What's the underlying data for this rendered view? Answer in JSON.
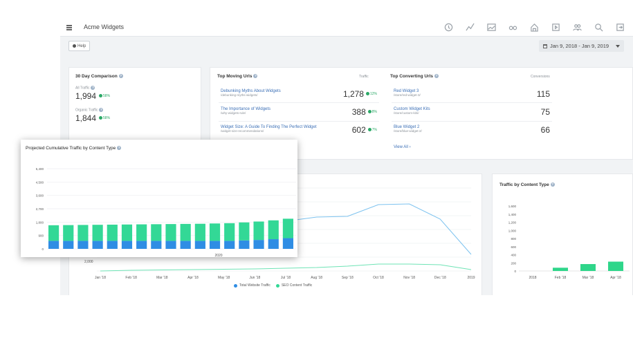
{
  "header": {
    "app_title": "Acme Widgets",
    "nav_icons": [
      "clock-icon",
      "line-chart-icon",
      "area-chart-icon",
      "glasses-icon",
      "home-icon",
      "play-icon",
      "users-icon",
      "search-icon",
      "exit-icon"
    ]
  },
  "toolbar": {
    "help_label": "Help",
    "date_range": "Jan 9, 2018 - Jan 9, 2019"
  },
  "comparison": {
    "title": "30 Day Comparison",
    "all_traffic_label": "All Traffic",
    "all_traffic_value": "1,994",
    "all_traffic_change": "58%",
    "organic_label": "Organic Traffic",
    "organic_value": "1,844",
    "organic_change": "58%"
  },
  "top_moving": {
    "title": "Top Moving Urls",
    "column": "Traffic",
    "rows": [
      {
        "title": "Debunking Myths About Widgets",
        "path": "/debunking-myths-widgets/",
        "value": "1,278",
        "change": "12%"
      },
      {
        "title": "The Importance of Widgets",
        "path": "/why-widgets-rule/",
        "value": "388",
        "change": "8%"
      },
      {
        "title": "Widget Size: A Guide To Finding The Perfect Widget",
        "path": "/widget-size-recommendations/",
        "value": "602",
        "change": "7%"
      }
    ]
  },
  "top_converting": {
    "title": "Top Converting Urls",
    "column": "Conversions",
    "rows": [
      {
        "title": "Red Widget 3",
        "path": "/store/red-widget-3/",
        "value": "115"
      },
      {
        "title": "Custom Widget Kits",
        "path": "/store/custom-kits/",
        "value": "75"
      },
      {
        "title": "Blue Widget 2",
        "path": "/store/blue-widget-2/",
        "value": "66"
      }
    ],
    "view_all": "View All ›"
  },
  "traffic_by_type": {
    "title": "Traffic by Content Type",
    "chart_data": {
      "type": "bar",
      "categories": [
        "2018",
        "Feb '18",
        "Mar '18",
        "Apr '18"
      ],
      "values": [
        0,
        80,
        170,
        230
      ],
      "yticks": [
        "1,600",
        "1,400",
        "1,200",
        "1,000",
        "800",
        "600",
        "400",
        "200",
        "0"
      ],
      "ylim": [
        0,
        1600
      ],
      "color": "#2fd68a"
    }
  },
  "main_chart": {
    "x_labels": [
      "Jan '18",
      "Feb '18",
      "Mar '18",
      "Apr '18",
      "May '18",
      "Jun '18",
      "Jul '18",
      "Aug '18",
      "Sep '18",
      "Oct '18",
      "Nov '18",
      "Dec '18",
      "2019"
    ],
    "y_label_visible": "2,000",
    "legend": {
      "total": "Total Website Traffic",
      "seo": "SEO Content Traffic"
    },
    "colors": {
      "total": "#7cc2ef",
      "seo": "#6ee3b5"
    },
    "chart_data": {
      "type": "line",
      "x": [
        "Jan '18",
        "Feb '18",
        "Mar '18",
        "Apr '18",
        "May '18",
        "Jun '18",
        "Jul '18",
        "Aug '18",
        "Sep '18",
        "Oct '18",
        "Nov '18",
        "Dec '18",
        "2019"
      ],
      "series": [
        {
          "name": "Total Website Traffic",
          "values": [
            null,
            null,
            null,
            null,
            null,
            null,
            7200,
            7800,
            7900,
            9600,
            9700,
            7500,
            2400
          ]
        },
        {
          "name": "SEO Content Traffic",
          "values": [
            0,
            100,
            150,
            200,
            250,
            300,
            400,
            500,
            700,
            1000,
            1000,
            900,
            200
          ]
        }
      ]
    }
  },
  "projected": {
    "title": "Projected Cumulative Traffic by Content Type",
    "year_label": "2020",
    "colors": {
      "blue": "#2f8de4",
      "green": "#33d896"
    },
    "chart_data": {
      "type": "bar",
      "yticks": [
        "5,400",
        "4,500",
        "3,600",
        "2,700",
        "1,800",
        "900",
        "0"
      ],
      "ylim": [
        0,
        5400
      ],
      "series": [
        {
          "values": [
            540,
            540,
            540,
            540,
            540,
            540,
            540,
            540,
            540,
            540,
            540,
            540,
            540,
            570,
            600,
            650,
            720
          ]
        },
        {
          "values": [
            1050,
            1060,
            1070,
            1080,
            1090,
            1100,
            1110,
            1120,
            1130,
            1140,
            1150,
            1170,
            1190,
            1210,
            1240,
            1270,
            1310
          ]
        }
      ]
    }
  }
}
